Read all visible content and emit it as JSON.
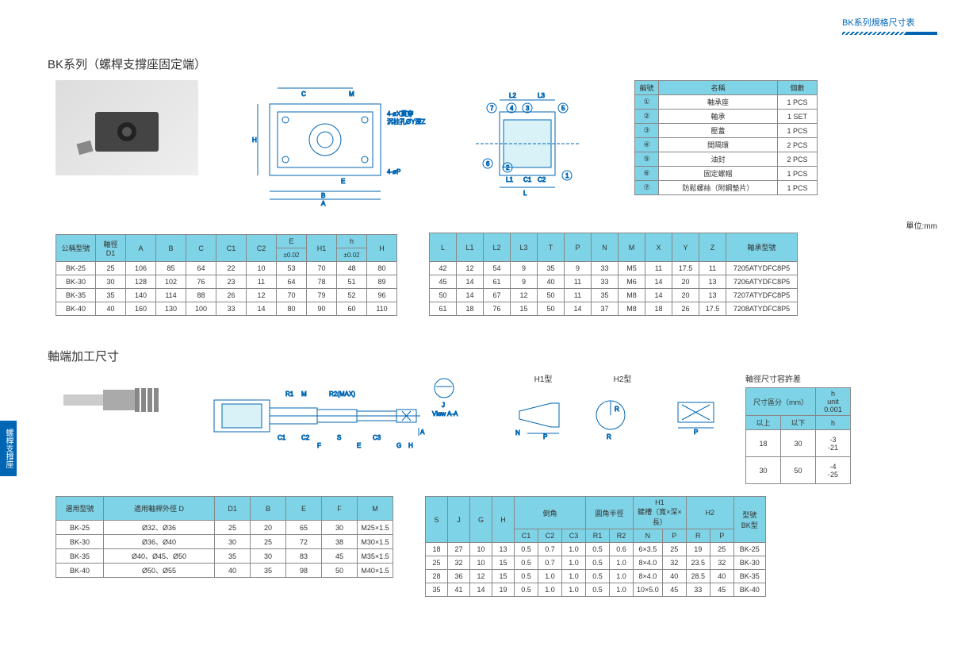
{
  "header": {
    "title": "BK系列規格尺寸表"
  },
  "section1": {
    "title": "BK系列（螺桿支撐座固定端）",
    "parts_table": {
      "headers": [
        "編號",
        "名稱",
        "個數"
      ],
      "rows": [
        {
          "num": "①",
          "name": "軸承座",
          "qty": "1 PCS"
        },
        {
          "num": "②",
          "name": "軸承",
          "qty": "1 SET"
        },
        {
          "num": "③",
          "name": "壓蓋",
          "qty": "1 PCS"
        },
        {
          "num": "④",
          "name": "間隔環",
          "qty": "2 PCS"
        },
        {
          "num": "⑤",
          "name": "油封",
          "qty": "2 PCS"
        },
        {
          "num": "⑥",
          "name": "固定螺帽",
          "qty": "1 PCS"
        },
        {
          "num": "⑦",
          "name": "防鬆螺絲（附鋼墊片）",
          "qty": "1 PCS"
        }
      ]
    },
    "unit": "單位:mm",
    "spec_left": {
      "headers": [
        "公稱型號",
        "軸徑\nD1",
        "A",
        "B",
        "C",
        "C1",
        "C2",
        "E",
        "H1",
        "h",
        "H"
      ],
      "sub": [
        "±0.02",
        "",
        "±0.02",
        ""
      ],
      "rows": [
        [
          "BK-25",
          "25",
          "106",
          "85",
          "64",
          "22",
          "10",
          "53",
          "70",
          "48",
          "80"
        ],
        [
          "BK-30",
          "30",
          "128",
          "102",
          "76",
          "23",
          "11",
          "64",
          "78",
          "51",
          "89"
        ],
        [
          "BK-35",
          "35",
          "140",
          "114",
          "88",
          "26",
          "12",
          "70",
          "79",
          "52",
          "96"
        ],
        [
          "BK-40",
          "40",
          "160",
          "130",
          "100",
          "33",
          "14",
          "80",
          "90",
          "60",
          "110"
        ]
      ]
    },
    "spec_right": {
      "headers": [
        "L",
        "L1",
        "L2",
        "L3",
        "T",
        "P",
        "N",
        "M",
        "X",
        "Y",
        "Z",
        "軸承型號"
      ],
      "rows": [
        [
          "42",
          "12",
          "54",
          "9",
          "35",
          "9",
          "33",
          "M5",
          "11",
          "17.5",
          "11",
          "7205ATYDFC8P5"
        ],
        [
          "45",
          "14",
          "61",
          "9",
          "40",
          "11",
          "33",
          "M6",
          "14",
          "20",
          "13",
          "7206ATYDFC8P5"
        ],
        [
          "50",
          "14",
          "67",
          "12",
          "50",
          "11",
          "35",
          "M8",
          "14",
          "20",
          "13",
          "7207ATYDFC8P5"
        ],
        [
          "61",
          "18",
          "76",
          "15",
          "50",
          "14",
          "37",
          "M8",
          "18",
          "26",
          "17.5",
          "7208ATYDFC8P5"
        ]
      ]
    }
  },
  "section2": {
    "title": "軸端加工尺寸",
    "diag_labels": {
      "h1": "H1型",
      "h2": "H2型"
    },
    "tolerance": {
      "title": "軸徑尺寸容許差",
      "headers": [
        "尺寸區分（mm）",
        "h\nunit 0.001"
      ],
      "sub": [
        "以上",
        "以下",
        "h"
      ],
      "rows": [
        [
          "18",
          "30",
          "-3\n-21"
        ],
        [
          "30",
          "50",
          "-4\n-25"
        ]
      ]
    },
    "spec_left": {
      "headers": [
        "選用型號",
        "適用軸桿外徑 D",
        "D1",
        "B",
        "E",
        "F",
        "M"
      ],
      "rows": [
        [
          "BK-25",
          "Ø32、Ø36",
          "25",
          "20",
          "65",
          "30",
          "M25×1.5"
        ],
        [
          "BK-30",
          "Ø36、Ø40",
          "30",
          "25",
          "72",
          "38",
          "M30×1.5"
        ],
        [
          "BK-35",
          "Ø40、Ø45、Ø50",
          "35",
          "30",
          "83",
          "45",
          "M35×1.5"
        ],
        [
          "BK-40",
          "Ø50、Ø55",
          "40",
          "35",
          "98",
          "50",
          "M40×1.5"
        ]
      ]
    },
    "spec_right": {
      "headers_top": [
        "S",
        "J",
        "G",
        "H",
        "倒角",
        "圓角半徑",
        "H1\n鍵槽（寬×深×長）",
        "H2",
        "型號\nBK型"
      ],
      "headers_sub": [
        "C1",
        "C2",
        "C3",
        "R1",
        "R2",
        "N",
        "P",
        "R",
        "P"
      ],
      "spans": {
        "倒角": 3,
        "圓角半徑": 2,
        "H1": 2,
        "H2": 2
      },
      "rows": [
        [
          "18",
          "27",
          "10",
          "13",
          "0.5",
          "0.7",
          "1.0",
          "0.5",
          "0.6",
          "6×3.5",
          "25",
          "19",
          "25",
          "BK-25"
        ],
        [
          "25",
          "32",
          "10",
          "15",
          "0.5",
          "0.7",
          "1.0",
          "0.5",
          "1.0",
          "8×4.0",
          "32",
          "23.5",
          "32",
          "BK-30"
        ],
        [
          "28",
          "36",
          "12",
          "15",
          "0.5",
          "1.0",
          "1.0",
          "0.5",
          "1.0",
          "8×4.0",
          "40",
          "28.5",
          "40",
          "BK-35"
        ],
        [
          "35",
          "41",
          "14",
          "19",
          "0.5",
          "1.0",
          "1.0",
          "0.5",
          "1.0",
          "10×5.0",
          "45",
          "33",
          "45",
          "BK-40"
        ]
      ]
    }
  },
  "sidebar": "螺桿支撐座",
  "colors": {
    "header_bg": "#7fd3e6",
    "line": "#0066b3"
  }
}
